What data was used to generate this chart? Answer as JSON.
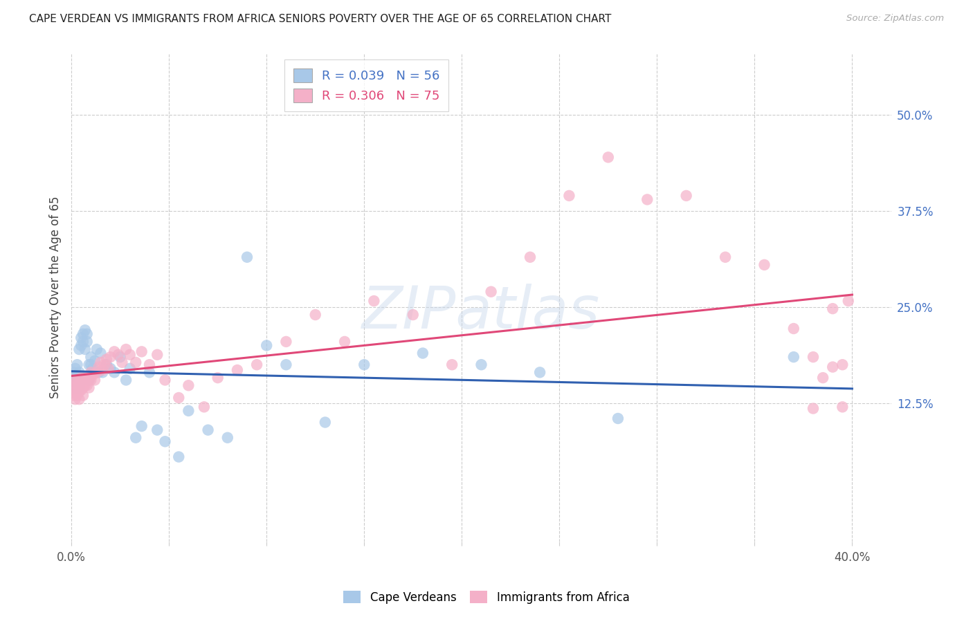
{
  "title": "CAPE VERDEAN VS IMMIGRANTS FROM AFRICA SENIORS POVERTY OVER THE AGE OF 65 CORRELATION CHART",
  "source": "Source: ZipAtlas.com",
  "ylabel": "Seniors Poverty Over the Age of 65",
  "blue_R": 0.039,
  "blue_N": 56,
  "pink_R": 0.306,
  "pink_N": 75,
  "blue_color": "#a8c8e8",
  "pink_color": "#f4b0c8",
  "blue_line_color": "#3060b0",
  "pink_line_color": "#e04878",
  "blue_label": "Cape Verdeans",
  "pink_label": "Immigrants from Africa",
  "watermark": "ZIPatlas",
  "xlim": [
    0.0,
    0.42
  ],
  "ylim": [
    -0.055,
    0.58
  ],
  "ytick_vals": [
    0.125,
    0.25,
    0.375,
    0.5
  ],
  "ytick_labels": [
    "12.5%",
    "25.0%",
    "37.5%",
    "50.0%"
  ],
  "blue_x": [
    0.001,
    0.001,
    0.002,
    0.002,
    0.002,
    0.003,
    0.003,
    0.003,
    0.004,
    0.004,
    0.004,
    0.005,
    0.005,
    0.005,
    0.006,
    0.006,
    0.006,
    0.007,
    0.007,
    0.008,
    0.008,
    0.009,
    0.009,
    0.01,
    0.01,
    0.011,
    0.012,
    0.013,
    0.014,
    0.015,
    0.016,
    0.018,
    0.02,
    0.022,
    0.025,
    0.028,
    0.03,
    0.033,
    0.036,
    0.04,
    0.044,
    0.048,
    0.055,
    0.06,
    0.07,
    0.08,
    0.09,
    0.1,
    0.11,
    0.13,
    0.15,
    0.18,
    0.21,
    0.24,
    0.28,
    0.37
  ],
  "blue_y": [
    0.165,
    0.155,
    0.17,
    0.16,
    0.145,
    0.175,
    0.16,
    0.15,
    0.165,
    0.195,
    0.145,
    0.21,
    0.2,
    0.16,
    0.215,
    0.205,
    0.155,
    0.22,
    0.195,
    0.215,
    0.205,
    0.175,
    0.155,
    0.185,
    0.175,
    0.17,
    0.18,
    0.195,
    0.165,
    0.19,
    0.165,
    0.175,
    0.17,
    0.165,
    0.185,
    0.155,
    0.17,
    0.08,
    0.095,
    0.165,
    0.09,
    0.075,
    0.055,
    0.115,
    0.09,
    0.08,
    0.315,
    0.2,
    0.175,
    0.1,
    0.175,
    0.19,
    0.175,
    0.165,
    0.105,
    0.185
  ],
  "pink_x": [
    0.001,
    0.001,
    0.001,
    0.002,
    0.002,
    0.002,
    0.003,
    0.003,
    0.003,
    0.004,
    0.004,
    0.004,
    0.005,
    0.005,
    0.005,
    0.006,
    0.006,
    0.006,
    0.007,
    0.007,
    0.008,
    0.008,
    0.009,
    0.009,
    0.01,
    0.01,
    0.011,
    0.012,
    0.013,
    0.014,
    0.015,
    0.016,
    0.017,
    0.018,
    0.019,
    0.02,
    0.022,
    0.024,
    0.026,
    0.028,
    0.03,
    0.033,
    0.036,
    0.04,
    0.044,
    0.048,
    0.055,
    0.06,
    0.068,
    0.075,
    0.085,
    0.095,
    0.11,
    0.125,
    0.14,
    0.155,
    0.175,
    0.195,
    0.215,
    0.235,
    0.255,
    0.275,
    0.295,
    0.315,
    0.335,
    0.355,
    0.37,
    0.38,
    0.39,
    0.395,
    0.398,
    0.395,
    0.39,
    0.385,
    0.38
  ],
  "pink_y": [
    0.145,
    0.135,
    0.155,
    0.14,
    0.15,
    0.13,
    0.145,
    0.155,
    0.135,
    0.15,
    0.14,
    0.13,
    0.148,
    0.158,
    0.142,
    0.155,
    0.145,
    0.135,
    0.152,
    0.148,
    0.158,
    0.148,
    0.155,
    0.145,
    0.165,
    0.155,
    0.162,
    0.155,
    0.165,
    0.172,
    0.178,
    0.168,
    0.175,
    0.182,
    0.17,
    0.185,
    0.192,
    0.188,
    0.178,
    0.195,
    0.188,
    0.178,
    0.192,
    0.175,
    0.188,
    0.155,
    0.132,
    0.148,
    0.12,
    0.158,
    0.168,
    0.175,
    0.205,
    0.24,
    0.205,
    0.258,
    0.24,
    0.175,
    0.27,
    0.315,
    0.395,
    0.445,
    0.39,
    0.395,
    0.315,
    0.305,
    0.222,
    0.185,
    0.172,
    0.175,
    0.258,
    0.12,
    0.248,
    0.158,
    0.118
  ]
}
